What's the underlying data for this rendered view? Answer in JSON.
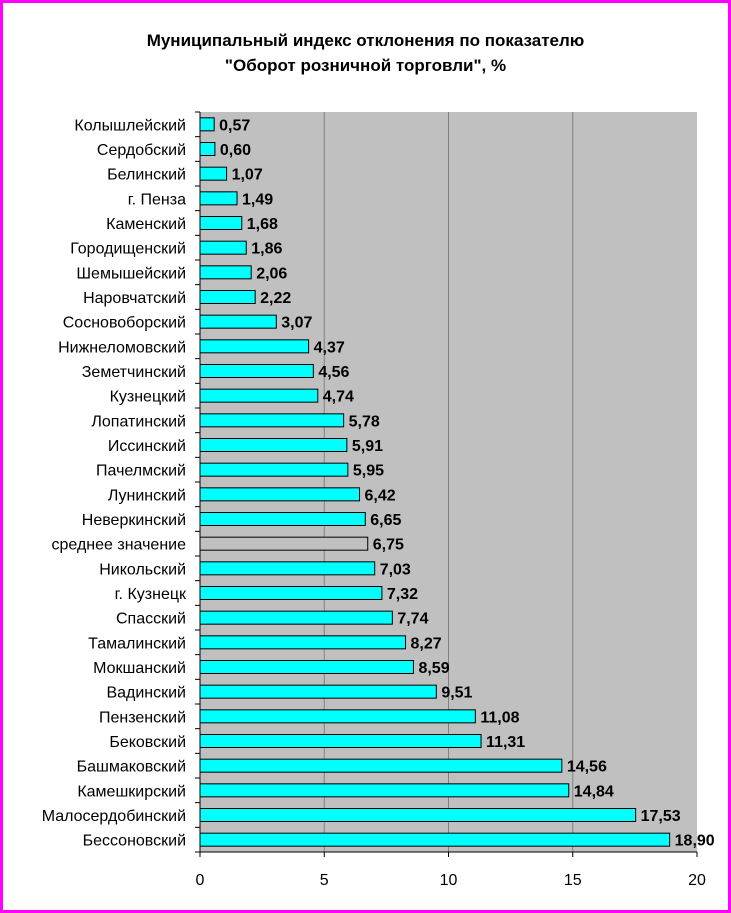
{
  "chart_data": {
    "type": "bar",
    "orientation": "horizontal",
    "title_line1": "Муниципальный индекс отклонения по показателю",
    "title_line2": "\"Оборот розничной торговли\", %",
    "categories": [
      "Колышлейский",
      "Сердобский",
      "Белинский",
      "г. Пенза",
      "Каменский",
      "Городищенский",
      "Шемышейский",
      "Наровчатский",
      "Сосновоборский",
      "Нижнеломовский",
      "Земетчинский",
      "Кузнецкий",
      "Лопатинский",
      "Иссинский",
      "Пачелмский",
      "Лунинский",
      "Неверкинский",
      "среднее значение",
      "Никольский",
      "г. Кузнецк",
      "Спасский",
      "Тамалинский",
      "Мокшанский",
      "Вадинский",
      "Пензенский",
      "Бековский",
      "Башмаковский",
      "Камешкирский",
      "Малосердобинский",
      "Бессоновский"
    ],
    "values": [
      0.57,
      0.6,
      1.07,
      1.49,
      1.68,
      1.86,
      2.06,
      2.22,
      3.07,
      4.37,
      4.56,
      4.74,
      5.78,
      5.91,
      5.95,
      6.42,
      6.65,
      6.75,
      7.03,
      7.32,
      7.74,
      8.27,
      8.59,
      9.51,
      11.08,
      11.31,
      14.56,
      14.84,
      17.53,
      18.9
    ],
    "value_labels": [
      "0,57",
      "0,60",
      "1,07",
      "1,49",
      "1,68",
      "1,86",
      "2,06",
      "2,22",
      "3,07",
      "4,37",
      "4,56",
      "4,74",
      "5,78",
      "5,91",
      "5,95",
      "6,42",
      "6,65",
      "6,75",
      "7,03",
      "7,32",
      "7,74",
      "8,27",
      "8,59",
      "9,51",
      "11,08",
      "11,31",
      "14,56",
      "14,84",
      "17,53",
      "18,90"
    ],
    "highlight_category": "среднее значение",
    "xlim": [
      0,
      20
    ],
    "xticks": [
      0,
      5,
      10,
      15,
      20
    ],
    "grid": "vertical",
    "legend": "none",
    "colors": {
      "bar": "#00ffff",
      "highlight_bar": "#c0c0c0",
      "plot_bg": "#c0c0c0",
      "frame": "#ff00ff",
      "gridline": "#808080"
    }
  }
}
